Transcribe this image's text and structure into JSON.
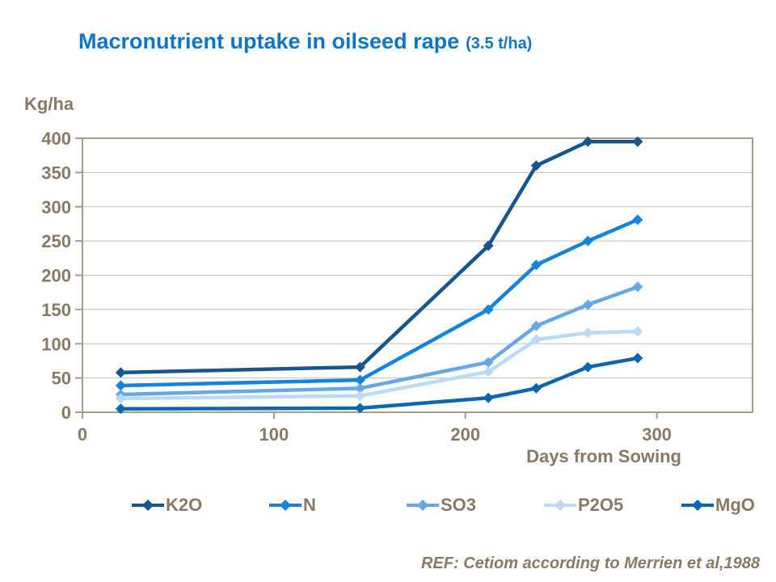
{
  "title": {
    "main": "Macronutrient uptake in oilseed rape",
    "suffix": "(3.5 t/ha)"
  },
  "y_axis_unit": "Kg/ha",
  "x_axis_title": "Days from Sowing",
  "footer": {
    "text": "REF: Cetiom according to Merrien et al,1988"
  },
  "colors": {
    "title": "#0E76C6",
    "axis_text": "#8A7A64",
    "plot_border": "#A79B8B",
    "gridline": "#C9BDAE"
  },
  "chart_data": {
    "type": "line",
    "title": "Macronutrient uptake in oilseed rape (3.5 t/ha)",
    "xlabel": "Days from Sowing",
    "ylabel": "Kg/ha",
    "xlim": [
      0,
      350
    ],
    "ylim": [
      0,
      400
    ],
    "x_ticks": [
      0,
      100,
      200,
      300
    ],
    "y_ticks": [
      0,
      50,
      100,
      150,
      200,
      250,
      300,
      350,
      400
    ],
    "grid": "horizontal",
    "legend_position": "bottom",
    "marker": "diamond",
    "x": [
      20,
      145,
      212,
      237,
      264,
      290
    ],
    "series": [
      {
        "name": "K2O",
        "color": "#16568E",
        "values": [
          58,
          66,
          243,
          360,
          395,
          395
        ]
      },
      {
        "name": "N",
        "color": "#1583DC",
        "values": [
          39,
          47,
          150,
          215,
          250,
          281
        ]
      },
      {
        "name": "SO3",
        "color": "#64A9E6",
        "values": [
          26,
          35,
          73,
          126,
          157,
          183
        ]
      },
      {
        "name": "P2O5",
        "color": "#BBDAF5",
        "values": [
          20,
          24,
          59,
          106,
          116,
          118
        ]
      },
      {
        "name": "MgO",
        "color": "#0D66B2",
        "values": [
          5,
          6,
          21,
          35,
          66,
          79
        ]
      }
    ]
  }
}
